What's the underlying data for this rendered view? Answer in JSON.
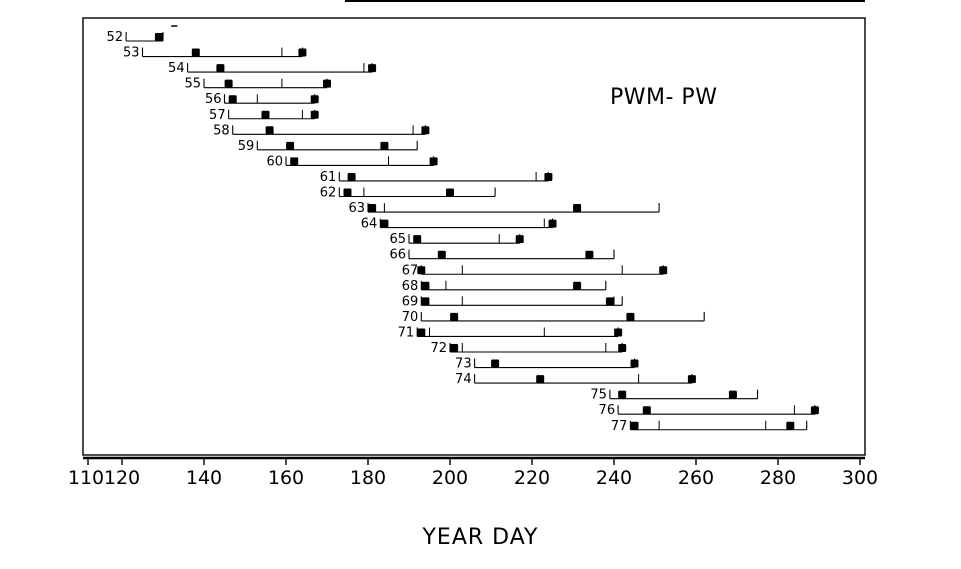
{
  "chart_data": {
    "type": "gantt",
    "title": "PWM- PW",
    "xlabel": "YEAR DAY",
    "xlim": [
      110,
      300
    ],
    "xticks": [
      110,
      120,
      140,
      160,
      180,
      200,
      220,
      240,
      260,
      280,
      300
    ],
    "rows": [
      {
        "label": "52",
        "start": 121,
        "end": 130,
        "ticks": [],
        "markers": [
          129
        ]
      },
      {
        "label": "53",
        "start": 125,
        "end": 164,
        "ticks": [
          159
        ],
        "markers": [
          138,
          164
        ]
      },
      {
        "label": "54",
        "start": 136,
        "end": 181,
        "ticks": [
          179
        ],
        "markers": [
          144,
          181
        ]
      },
      {
        "label": "55",
        "start": 140,
        "end": 170,
        "ticks": [
          159
        ],
        "markers": [
          146,
          170
        ]
      },
      {
        "label": "56",
        "start": 145,
        "end": 167,
        "ticks": [
          153
        ],
        "markers": [
          147,
          167
        ]
      },
      {
        "label": "57",
        "start": 146,
        "end": 167,
        "ticks": [
          164
        ],
        "markers": [
          155,
          167
        ]
      },
      {
        "label": "58",
        "start": 147,
        "end": 194,
        "ticks": [
          191
        ],
        "markers": [
          156,
          194
        ]
      },
      {
        "label": "59",
        "start": 153,
        "end": 192,
        "ticks": [],
        "markers": [
          161,
          184
        ]
      },
      {
        "label": "60",
        "start": 160,
        "end": 196,
        "ticks": [
          185
        ],
        "markers": [
          162,
          196
        ]
      },
      {
        "label": "61",
        "start": 173,
        "end": 224,
        "ticks": [
          221
        ],
        "markers": [
          176,
          224
        ]
      },
      {
        "label": "62",
        "start": 173,
        "end": 211,
        "ticks": [
          179
        ],
        "markers": [
          175,
          200
        ]
      },
      {
        "label": "63",
        "start": 180,
        "end": 251,
        "ticks": [
          184
        ],
        "markers": [
          181,
          231
        ]
      },
      {
        "label": "64",
        "start": 183,
        "end": 225,
        "ticks": [
          223
        ],
        "markers": [
          184,
          225
        ]
      },
      {
        "label": "65",
        "start": 190,
        "end": 217,
        "ticks": [
          212
        ],
        "markers": [
          192,
          217
        ]
      },
      {
        "label": "66",
        "start": 190,
        "end": 240,
        "ticks": [],
        "markers": [
          198,
          234
        ]
      },
      {
        "label": "67",
        "start": 193,
        "end": 252,
        "ticks": [
          203,
          242
        ],
        "markers": [
          193,
          252
        ]
      },
      {
        "label": "68",
        "start": 193,
        "end": 238,
        "ticks": [
          199
        ],
        "markers": [
          194,
          231
        ]
      },
      {
        "label": "69",
        "start": 193,
        "end": 242,
        "ticks": [
          203,
          240
        ],
        "markers": [
          194,
          239
        ]
      },
      {
        "label": "70",
        "start": 193,
        "end": 262,
        "ticks": [],
        "markers": [
          201,
          244
        ]
      },
      {
        "label": "71",
        "start": 192,
        "end": 241,
        "ticks": [
          195,
          223
        ],
        "markers": [
          193,
          241
        ]
      },
      {
        "label": "72",
        "start": 200,
        "end": 242,
        "ticks": [
          203,
          238
        ],
        "markers": [
          201,
          242
        ]
      },
      {
        "label": "73",
        "start": 206,
        "end": 245,
        "ticks": [],
        "markers": [
          211,
          245
        ]
      },
      {
        "label": "74",
        "start": 206,
        "end": 259,
        "ticks": [
          246
        ],
        "markers": [
          222,
          259
        ]
      },
      {
        "label": "75",
        "start": 239,
        "end": 275,
        "ticks": [],
        "markers": [
          242,
          269
        ]
      },
      {
        "label": "76",
        "start": 241,
        "end": 289,
        "ticks": [
          284
        ],
        "markers": [
          248,
          289
        ]
      },
      {
        "label": "77",
        "start": 244,
        "end": 287,
        "ticks": [
          251,
          277
        ],
        "markers": [
          245,
          283
        ]
      }
    ]
  }
}
